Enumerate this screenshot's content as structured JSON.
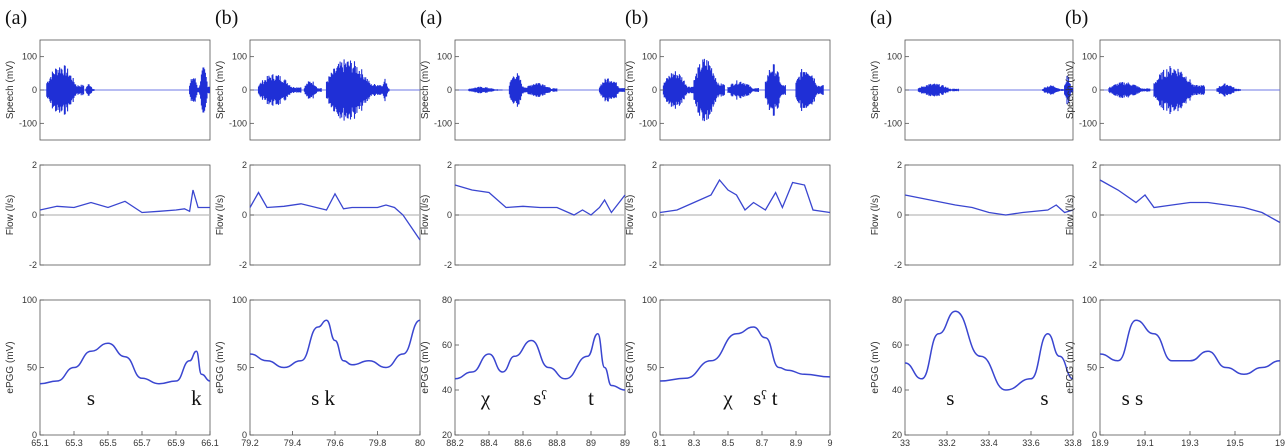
{
  "chart_data": [
    {
      "type": "line",
      "tag": "(a)",
      "xticks": [
        "65.1",
        "65.3",
        "65.5",
        "65.7",
        "65.9",
        "66.1"
      ],
      "speech": {
        "ylabel": "Speech (mV)",
        "yticks": [
          "100",
          "0",
          "-100"
        ],
        "ylim": [
          -150,
          150
        ],
        "bursts": [
          [
            0.04,
            0.26,
            80
          ],
          [
            0.27,
            0.32,
            20
          ],
          [
            0.88,
            0.94,
            45
          ],
          [
            0.94,
            1.0,
            70
          ]
        ]
      },
      "flow": {
        "ylabel": "Flow (l/s)",
        "yticks": [
          "2",
          "0",
          "-2"
        ],
        "ylim": [
          -2,
          2
        ],
        "x": [
          0,
          0.1,
          0.2,
          0.3,
          0.4,
          0.5,
          0.6,
          0.7,
          0.8,
          0.85,
          0.88,
          0.9,
          0.93,
          0.96,
          1.0
        ],
        "y": [
          0.2,
          0.35,
          0.3,
          0.5,
          0.3,
          0.55,
          0.1,
          0.15,
          0.2,
          0.25,
          0.15,
          1.0,
          0.3,
          0.3,
          0.3
        ]
      },
      "epgg": {
        "ylabel": "ePGG (mV)",
        "yticks": [
          "100",
          "50",
          "0"
        ],
        "ylim": [
          0,
          100
        ],
        "x": [
          0,
          0.1,
          0.2,
          0.3,
          0.4,
          0.5,
          0.6,
          0.7,
          0.8,
          0.88,
          0.92,
          0.95,
          1.0
        ],
        "y": [
          38,
          40,
          50,
          62,
          68,
          58,
          42,
          38,
          40,
          55,
          62,
          45,
          40
        ]
      },
      "annotations": [
        {
          "text": "s",
          "x": 0.3
        },
        {
          "text": "k",
          "x": 0.92
        }
      ]
    },
    {
      "type": "line",
      "tag": "(b)",
      "xticks": [
        "79.2",
        "79.4",
        "79.6",
        "79.8",
        "80"
      ],
      "speech": {
        "ylabel": "Speech (mV)",
        "yticks": [
          "100",
          "0",
          "-100"
        ],
        "ylim": [
          -150,
          150
        ],
        "bursts": [
          [
            0.05,
            0.3,
            50
          ],
          [
            0.32,
            0.42,
            30
          ],
          [
            0.45,
            0.78,
            95
          ],
          [
            0.78,
            0.82,
            35
          ]
        ]
      },
      "flow": {
        "ylabel": "Flow (l/s)",
        "yticks": [
          "2",
          "0",
          "-2"
        ],
        "ylim": [
          -2,
          2
        ],
        "x": [
          0,
          0.05,
          0.1,
          0.2,
          0.3,
          0.45,
          0.5,
          0.55,
          0.6,
          0.75,
          0.8,
          0.85,
          0.9,
          0.95,
          1.0
        ],
        "y": [
          0.3,
          0.9,
          0.3,
          0.35,
          0.45,
          0.2,
          0.85,
          0.25,
          0.3,
          0.3,
          0.4,
          0.3,
          0.0,
          -0.5,
          -1.0
        ]
      },
      "epgg": {
        "ylabel": "ePGG (mV)",
        "yticks": [
          "100",
          "50",
          "0"
        ],
        "ylim": [
          0,
          100
        ],
        "x": [
          0,
          0.1,
          0.2,
          0.3,
          0.4,
          0.45,
          0.5,
          0.55,
          0.6,
          0.7,
          0.8,
          0.9,
          1.0
        ],
        "y": [
          60,
          55,
          50,
          55,
          80,
          85,
          70,
          55,
          52,
          55,
          50,
          60,
          85
        ]
      },
      "annotations": [
        {
          "text": "s k",
          "x": 0.43
        }
      ]
    },
    {
      "type": "line",
      "tag": "(a)",
      "xticks": [
        "88.2",
        "88.4",
        "88.6",
        "88.8",
        "89",
        "89"
      ],
      "speech": {
        "ylabel": "Speech (mV)",
        "yticks": [
          "100",
          "0",
          "-100"
        ],
        "ylim": [
          -150,
          150
        ],
        "bursts": [
          [
            0.08,
            0.28,
            10
          ],
          [
            0.32,
            0.42,
            55
          ],
          [
            0.42,
            0.6,
            25
          ],
          [
            0.85,
            1.0,
            40
          ]
        ]
      },
      "flow": {
        "ylabel": "Flow (l/s)",
        "yticks": [
          "2",
          "0",
          "-2"
        ],
        "ylim": [
          -2,
          2
        ],
        "x": [
          0,
          0.1,
          0.2,
          0.3,
          0.4,
          0.5,
          0.6,
          0.7,
          0.75,
          0.8,
          0.85,
          0.88,
          0.92,
          1.0
        ],
        "y": [
          1.2,
          1.0,
          0.9,
          0.3,
          0.35,
          0.3,
          0.3,
          0.0,
          0.2,
          0.0,
          0.3,
          0.6,
          0.1,
          0.8
        ]
      },
      "epgg": {
        "ylabel": "ePGG (mV)",
        "yticks": [
          "80",
          "60",
          "40",
          "20"
        ],
        "ylim": [
          20,
          80
        ],
        "x": [
          0,
          0.1,
          0.2,
          0.28,
          0.35,
          0.45,
          0.55,
          0.65,
          0.78,
          0.84,
          0.88,
          0.92,
          1.0
        ],
        "y": [
          45,
          48,
          56,
          48,
          55,
          62,
          50,
          45,
          55,
          65,
          50,
          42,
          40
        ]
      },
      "annotations": [
        {
          "text": "χ",
          "x": 0.18
        },
        {
          "text": "sˁ",
          "x": 0.5
        },
        {
          "text": "t",
          "x": 0.8
        }
      ]
    },
    {
      "type": "line",
      "tag": "(b)",
      "xticks": [
        "8.1",
        "8.3",
        "8.5",
        "8.7",
        "8.9",
        "9"
      ],
      "speech": {
        "ylabel": "Speech (mV)",
        "yticks": [
          "100",
          "0",
          "-100"
        ],
        "ylim": [
          -150,
          150
        ],
        "bursts": [
          [
            0.02,
            0.2,
            60
          ],
          [
            0.2,
            0.38,
            100
          ],
          [
            0.4,
            0.58,
            30
          ],
          [
            0.62,
            0.74,
            80
          ],
          [
            0.8,
            0.96,
            75
          ]
        ]
      },
      "flow": {
        "ylabel": "Flow (l/s)",
        "yticks": [
          "2",
          "0",
          "-2"
        ],
        "ylim": [
          -2,
          2
        ],
        "x": [
          0,
          0.1,
          0.2,
          0.3,
          0.35,
          0.4,
          0.45,
          0.5,
          0.55,
          0.62,
          0.68,
          0.72,
          0.78,
          0.85,
          0.9,
          1.0
        ],
        "y": [
          0.1,
          0.2,
          0.5,
          0.8,
          1.4,
          1.0,
          0.8,
          0.2,
          0.5,
          0.2,
          0.9,
          0.3,
          1.3,
          1.2,
          0.2,
          0.1
        ]
      },
      "epgg": {
        "ylabel": "ePGG (mV)",
        "yticks": [
          "100",
          "50",
          "0"
        ],
        "ylim": [
          0,
          100
        ],
        "x": [
          0,
          0.15,
          0.3,
          0.45,
          0.55,
          0.62,
          0.7,
          0.75,
          0.85,
          1.0
        ],
        "y": [
          40,
          42,
          55,
          75,
          80,
          72,
          50,
          48,
          45,
          43
        ]
      },
      "annotations": [
        {
          "text": "χ",
          "x": 0.4
        },
        {
          "text": "sˁ t",
          "x": 0.62
        }
      ]
    },
    {
      "type": "line",
      "tag": "(a)",
      "xticks": [
        "33",
        "33.2",
        "33.4",
        "33.6",
        "33.8"
      ],
      "speech": {
        "ylabel": "Speech (mV)",
        "yticks": [
          "100",
          "0",
          "-100"
        ],
        "ylim": [
          -150,
          150
        ],
        "bursts": [
          [
            0.08,
            0.32,
            20
          ],
          [
            0.82,
            0.95,
            15
          ],
          [
            0.95,
            1.0,
            45
          ]
        ]
      },
      "flow": {
        "ylabel": "Flow (l/s)",
        "yticks": [
          "2",
          "0",
          "-2"
        ],
        "ylim": [
          -2,
          2
        ],
        "x": [
          0,
          0.15,
          0.3,
          0.4,
          0.5,
          0.6,
          0.7,
          0.85,
          0.9,
          0.95,
          1.0
        ],
        "y": [
          0.8,
          0.6,
          0.4,
          0.3,
          0.1,
          0.0,
          0.1,
          0.2,
          0.4,
          0.1,
          0.2
        ]
      },
      "epgg": {
        "ylabel": "ePGG (mV)",
        "yticks": [
          "80",
          "60",
          "40",
          "20"
        ],
        "ylim": [
          20,
          80
        ],
        "x": [
          0,
          0.1,
          0.2,
          0.3,
          0.45,
          0.6,
          0.75,
          0.85,
          0.92,
          1.0
        ],
        "y": [
          52,
          45,
          65,
          75,
          55,
          40,
          45,
          65,
          55,
          45
        ]
      },
      "annotations": [
        {
          "text": "s",
          "x": 0.27
        },
        {
          "text": "s",
          "x": 0.83
        }
      ]
    },
    {
      "type": "line",
      "tag": "(b)",
      "xticks": [
        "18.9",
        "19.1",
        "19.3",
        "19.5",
        "19"
      ],
      "speech": {
        "ylabel": "Speech (mV)",
        "yticks": [
          "100",
          "0",
          "-100"
        ],
        "ylim": [
          -150,
          150
        ],
        "bursts": [
          [
            0.05,
            0.28,
            25
          ],
          [
            0.3,
            0.58,
            75
          ],
          [
            0.65,
            0.78,
            20
          ]
        ]
      },
      "flow": {
        "ylabel": "Flow (l/s)",
        "yticks": [
          "2",
          "0",
          "-2"
        ],
        "ylim": [
          -2,
          2
        ],
        "x": [
          0,
          0.1,
          0.2,
          0.25,
          0.3,
          0.4,
          0.5,
          0.6,
          0.7,
          0.8,
          0.9,
          1.0
        ],
        "y": [
          1.4,
          1.0,
          0.5,
          0.8,
          0.3,
          0.4,
          0.5,
          0.5,
          0.4,
          0.3,
          0.1,
          -0.3
        ]
      },
      "epgg": {
        "ylabel": "ePGG (mV)",
        "yticks": [
          "100",
          "50",
          "0"
        ],
        "ylim": [
          0,
          100
        ],
        "x": [
          0,
          0.1,
          0.2,
          0.3,
          0.4,
          0.5,
          0.6,
          0.7,
          0.8,
          0.9,
          1.0
        ],
        "y": [
          60,
          55,
          85,
          75,
          55,
          55,
          62,
          50,
          45,
          50,
          55
        ]
      },
      "annotations": [
        {
          "text": "s s",
          "x": 0.18
        }
      ]
    }
  ]
}
